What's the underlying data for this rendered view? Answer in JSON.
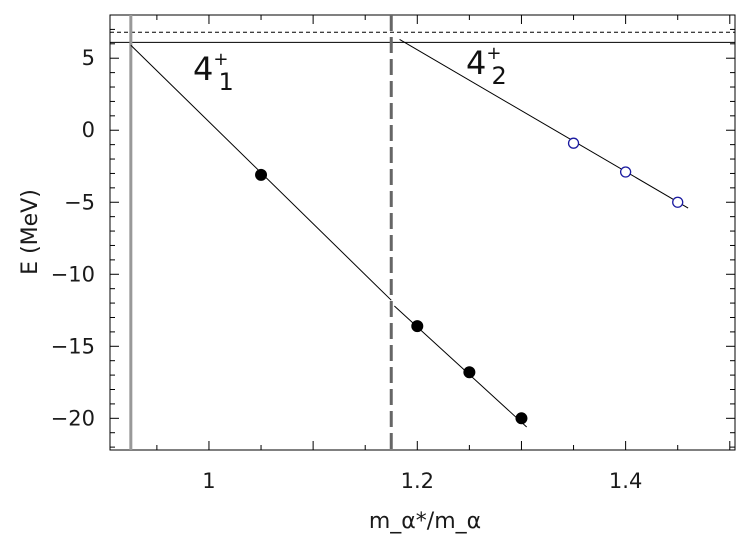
{
  "chart_data": {
    "type": "scatter",
    "xlabel": "m_α*/m_α",
    "ylabel": "E (MeV)",
    "xlim": [
      0.905,
      1.505
    ],
    "ylim": [
      -22.2,
      8.0
    ],
    "x_ticks": [
      1,
      1.2,
      1.4
    ],
    "x_tick_labels": [
      "1",
      "1.2",
      "1.4"
    ],
    "y_ticks": [
      5,
      0,
      -5,
      -10,
      -15,
      -20
    ],
    "y_tick_labels": [
      "5",
      "0",
      "−5",
      "−10",
      "−15",
      "−20"
    ],
    "grid": false,
    "legend": "none",
    "state_labels": [
      {
        "base": "4",
        "sup": "+",
        "sub": "1"
      },
      {
        "base": "4",
        "sup": "+",
        "sub": "2"
      }
    ],
    "series": [
      {
        "marker": "filled-circle",
        "color": "#000000",
        "points": [
          {
            "x": 1.05,
            "y": -3.1
          },
          {
            "x": 1.2,
            "y": -13.6
          },
          {
            "x": 1.25,
            "y": -16.8
          },
          {
            "x": 1.3,
            "y": -20.0
          }
        ]
      },
      {
        "marker": "open-circle",
        "color": "#1a1aa0",
        "points": [
          {
            "x": 1.35,
            "y": -0.9
          },
          {
            "x": 1.4,
            "y": -2.9
          },
          {
            "x": 1.45,
            "y": -5.0
          }
        ]
      }
    ],
    "fit_lines": [
      {
        "from": {
          "x": 0.925,
          "y": 5.9
        },
        "to": {
          "x": 1.175,
          "y": -11.8
        }
      },
      {
        "from": {
          "x": 1.178,
          "y": -12.2
        },
        "to": {
          "x": 1.305,
          "y": -20.6
        }
      },
      {
        "from": {
          "x": 1.183,
          "y": 6.3
        },
        "to": {
          "x": 1.46,
          "y": -5.4
        }
      }
    ],
    "horizontal_lines": [
      {
        "y": 6.1,
        "style": "solid"
      },
      {
        "y": 6.8,
        "style": "dashed"
      }
    ],
    "vertical_lines": [
      {
        "x": 0.925,
        "style": "solid",
        "color": "#999999"
      },
      {
        "x": 1.175,
        "style": "dashed",
        "color": "#666666"
      }
    ]
  }
}
